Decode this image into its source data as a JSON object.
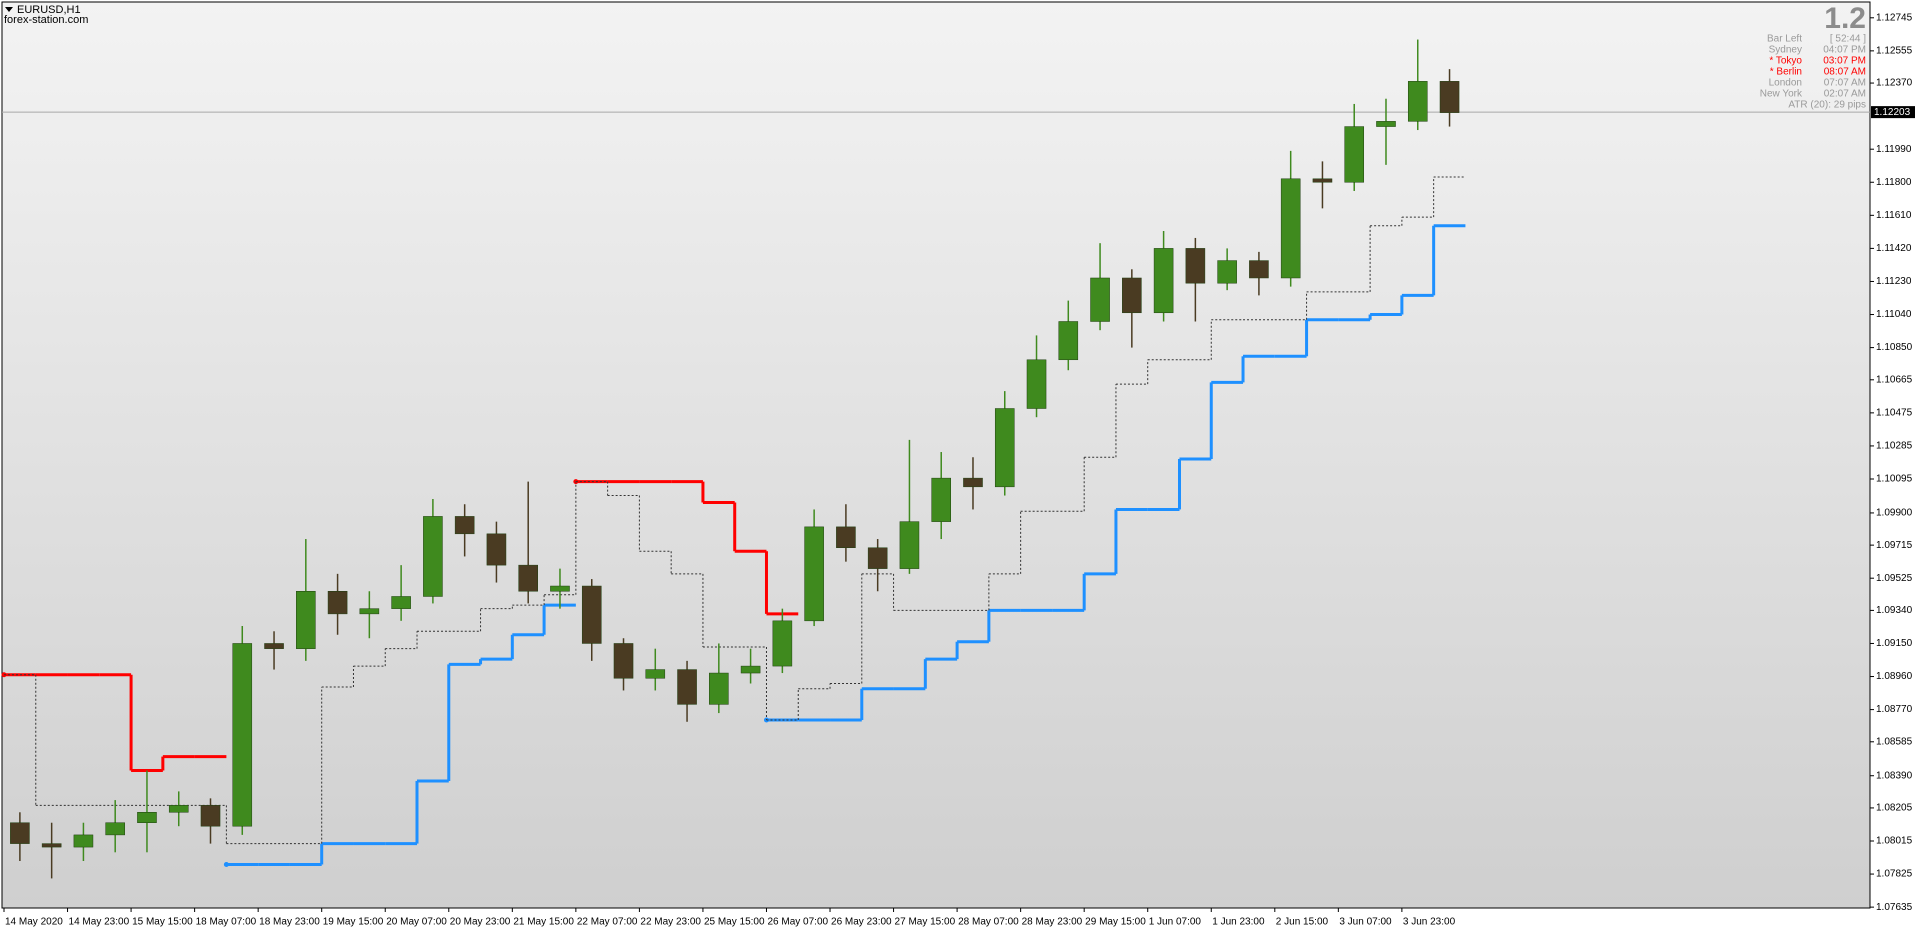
{
  "header": {
    "symbol": "EURUSD,H1",
    "site": "forex-station.com"
  },
  "info_panel": {
    "version": "1.2",
    "rows": [
      {
        "label": "Bar Left",
        "value": "[ 52:44 ]",
        "color": "#9a9a9a"
      },
      {
        "label": "Sydney",
        "value": "04:07 PM",
        "color": "#9a9a9a"
      },
      {
        "label": "* Tokyo",
        "value": "03:07 PM",
        "color": "#ff0000"
      },
      {
        "label": "* Berlin",
        "value": "08:07 AM",
        "color": "#ff0000"
      },
      {
        "label": "London",
        "value": "07:07 AM",
        "color": "#9a9a9a"
      },
      {
        "label": "New York",
        "value": "02:07 AM",
        "color": "#9a9a9a"
      }
    ],
    "atr": "ATR (20): 29 pips"
  },
  "chart_data": {
    "type": "candlestick",
    "categories": [
      "14 May 2020",
      null,
      "14 May 23:00",
      null,
      "15 May 15:00",
      null,
      "18 May 07:00",
      null,
      "18 May 23:00",
      null,
      "19 May 15:00",
      null,
      "20 May 07:00",
      null,
      "20 May 23:00",
      null,
      "21 May 15:00",
      null,
      "22 May 07:00",
      null,
      "22 May 23:00",
      null,
      "25 May 15:00",
      null,
      "26 May 07:00",
      null,
      "26 May 23:00",
      null,
      "27 May 15:00",
      null,
      "28 May 07:00",
      null,
      "28 May 23:00",
      null,
      "29 May 15:00",
      null,
      "1 Jun 07:00",
      null,
      "1 Jun 23:00",
      null,
      "2 Jun 15:00",
      null,
      "3 Jun 07:00",
      null,
      "3 Jun 23:00",
      null
    ],
    "candles": {
      "up_color": "#3f8a1e",
      "down_color": "#4a3b22",
      "open": [
        1.0812,
        1.08,
        1.0798,
        1.0805,
        1.0812,
        1.0818,
        1.0822,
        1.081,
        1.0915,
        1.0912,
        1.0945,
        1.0932,
        1.0935,
        1.0942,
        1.0988,
        1.0978,
        1.096,
        1.0945,
        1.0948,
        1.0915,
        1.0895,
        1.09,
        1.088,
        1.0898,
        1.0902,
        1.0928,
        1.0982,
        1.097,
        1.0958,
        1.0985,
        1.101,
        1.1005,
        1.105,
        1.1078,
        1.11,
        1.1125,
        1.1105,
        1.1142,
        1.1122,
        1.1135,
        1.1125,
        1.1182,
        1.118,
        1.1212,
        1.1215,
        1.1238
      ],
      "high": [
        1.0818,
        1.0812,
        1.0812,
        1.0825,
        1.0842,
        1.083,
        1.0826,
        1.0925,
        1.0922,
        1.0975,
        1.0955,
        1.0945,
        1.096,
        1.0998,
        1.0995,
        1.0985,
        1.1008,
        1.0958,
        1.0952,
        1.0918,
        1.0912,
        1.0905,
        1.0915,
        1.0912,
        1.0935,
        1.0992,
        1.0995,
        1.0975,
        1.1032,
        1.1025,
        1.1022,
        1.106,
        1.1092,
        1.1112,
        1.1145,
        1.113,
        1.1152,
        1.1148,
        1.1142,
        1.114,
        1.1198,
        1.1192,
        1.1225,
        1.1228,
        1.1262,
        1.1245
      ],
      "low": [
        1.079,
        1.078,
        1.079,
        1.0795,
        1.0795,
        1.081,
        1.08,
        1.0805,
        1.09,
        1.0905,
        1.092,
        1.0918,
        1.0928,
        1.0938,
        1.0965,
        1.095,
        1.0938,
        1.0935,
        1.0905,
        1.0888,
        1.0888,
        1.087,
        1.0875,
        1.0892,
        1.0898,
        1.0925,
        1.0962,
        1.0945,
        1.0955,
        1.0975,
        1.0992,
        1.1,
        1.1045,
        1.1072,
        1.1095,
        1.1085,
        1.11,
        1.11,
        1.1118,
        1.1115,
        1.112,
        1.1165,
        1.1175,
        1.119,
        1.121,
        1.1212
      ],
      "close": [
        1.08,
        1.0798,
        1.0805,
        1.0812,
        1.0818,
        1.0822,
        1.081,
        1.0915,
        1.0912,
        1.0945,
        1.0932,
        1.0935,
        1.0942,
        1.0988,
        1.0978,
        1.096,
        1.0945,
        1.0948,
        1.0915,
        1.0895,
        1.09,
        1.088,
        1.0898,
        1.0902,
        1.0928,
        1.0982,
        1.097,
        1.0958,
        1.0985,
        1.101,
        1.1005,
        1.105,
        1.1078,
        1.11,
        1.1125,
        1.1105,
        1.1142,
        1.1122,
        1.1135,
        1.1125,
        1.1182,
        1.118,
        1.1212,
        1.1215,
        1.1238,
        1.122
      ]
    },
    "indicator_lines": [
      {
        "color": "#ff0000",
        "style": "solid",
        "values": [
          1.0897,
          1.0897,
          1.0897,
          1.0897,
          1.0842,
          1.085,
          1.085,
          null,
          null,
          null,
          null,
          null,
          null,
          null,
          null,
          null,
          null,
          null,
          1.1008,
          1.1008,
          1.1008,
          1.1008,
          1.0996,
          1.0968,
          1.0932,
          null,
          null,
          null,
          null,
          null,
          null,
          null,
          null,
          null,
          null,
          null,
          null,
          null,
          null,
          null,
          null,
          null,
          null,
          null,
          null,
          null
        ]
      },
      {
        "color": "#1e90ff",
        "style": "solid",
        "values": [
          null,
          null,
          null,
          null,
          null,
          null,
          null,
          1.0788,
          1.0788,
          1.0788,
          1.08,
          1.08,
          1.08,
          1.0836,
          1.0903,
          1.0906,
          1.092,
          1.0937,
          null,
          null,
          null,
          null,
          null,
          null,
          1.0871,
          1.0871,
          1.0871,
          1.0889,
          1.0889,
          1.0906,
          1.0916,
          1.0934,
          1.0934,
          1.0934,
          1.0955,
          1.0992,
          1.0992,
          1.1021,
          1.1065,
          1.108,
          1.108,
          1.1101,
          1.1101,
          1.1104,
          1.1115,
          1.1155
        ]
      },
      {
        "color": "#333333",
        "style": "dotted",
        "values": [
          1.0897,
          1.0822,
          1.0822,
          1.0822,
          1.0822,
          1.0822,
          1.0822,
          1.08,
          1.08,
          1.08,
          1.089,
          1.0902,
          1.0912,
          1.0922,
          1.0922,
          1.0935,
          1.0937,
          1.0943,
          1.1008,
          1.1,
          1.0968,
          1.0955,
          1.0913,
          1.0913,
          1.0871,
          1.0889,
          1.0892,
          1.0955,
          1.0934,
          1.0934,
          1.0934,
          1.0955,
          1.0991,
          1.0991,
          1.1022,
          1.1064,
          1.1078,
          1.1078,
          1.1101,
          1.1101,
          1.1101,
          1.1117,
          1.1117,
          1.1155,
          1.116,
          1.1183
        ]
      }
    ],
    "current_price": 1.12203,
    "ylim": [
      1.0763,
      1.1283
    ],
    "yticks": [
      1.12745,
      1.12555,
      {
        "value": 1.1237,
        "label": "1.12370"
      },
      {
        "value": 1.1199,
        "label": "1.11990"
      },
      {
        "value": 1.118,
        "label": "1.11800"
      },
      {
        "value": 1.1161,
        "label": "1.11610"
      },
      {
        "value": 1.1142,
        "label": "1.11420"
      },
      {
        "value": 1.1123,
        "label": "1.11230"
      },
      {
        "value": 1.1104,
        "label": "1.11040"
      },
      {
        "value": 1.1085,
        "label": "1.10850"
      },
      1.10665,
      1.10475,
      1.10285,
      1.10095,
      {
        "value": 1.099,
        "label": "1.09900"
      },
      1.09715,
      1.09525,
      {
        "value": 1.0934,
        "label": "1.09340"
      },
      {
        "value": 1.0915,
        "label": "1.09150"
      },
      {
        "value": 1.0896,
        "label": "1.08960"
      },
      {
        "value": 1.0877,
        "label": "1.08770"
      },
      1.08585,
      {
        "value": 1.0839,
        "label": "1.08390"
      },
      1.08205,
      1.08015,
      1.07825,
      1.07635
    ],
    "grid": false
  }
}
